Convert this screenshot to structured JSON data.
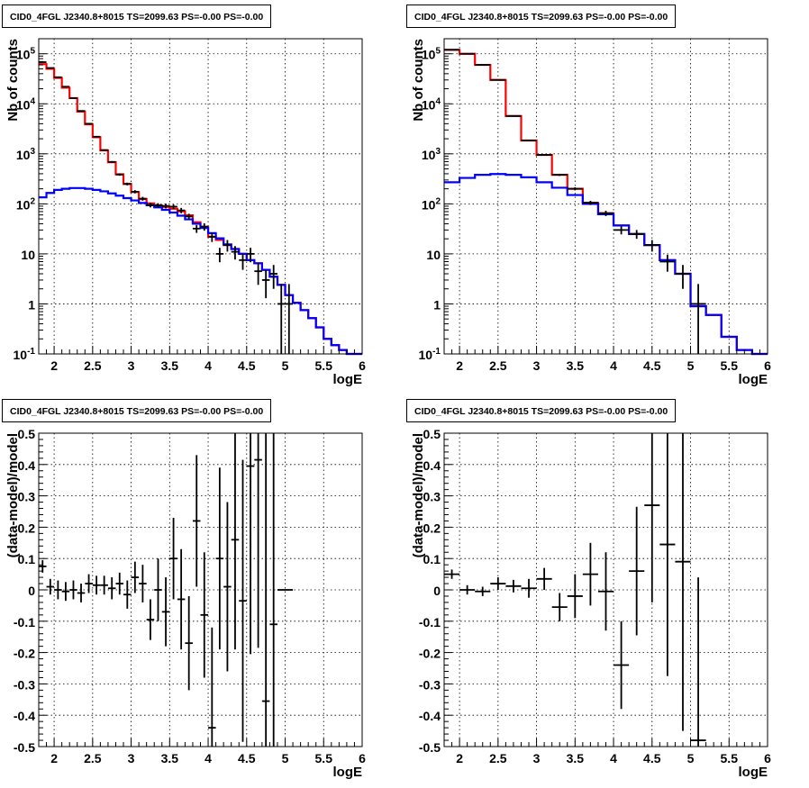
{
  "panels_title": "CID0_4FGL J2340.8+8015 TS=2099.63 PS=-0.00 PS=-0.00",
  "colors": {
    "data": "#000000",
    "total_model": "#ff0000",
    "background_model": "#0000ff",
    "grid": "#000000"
  },
  "chart_data": [
    {
      "type": "line",
      "title": "CID0_4FGL J2340.8+8015 TS=2099.63 PS=-0.00 PS=-0.00",
      "xlabel": "logE",
      "ylabel": "Nb of counts",
      "log_y": true,
      "xlim": [
        1.8,
        6.0
      ],
      "ylim": [
        0.1,
        200000
      ],
      "x_ticks": [
        2,
        2.5,
        3,
        3.5,
        4,
        4.5,
        5,
        5.5,
        6
      ],
      "x_tick_labels": [
        "2",
        "2.5",
        "3",
        "3.5",
        "4",
        "4.5",
        "5",
        "5.5",
        "6"
      ],
      "y_ticks": [
        0.1,
        1,
        10,
        100,
        1000,
        10000,
        100000
      ],
      "y_tick_labels": [
        "10^-1",
        "1",
        "10",
        "10^2",
        "10^3",
        "10^4",
        "10^5"
      ],
      "grid": true,
      "series": [
        {
          "kind": "step",
          "color": "#ff0000",
          "edges": [
            1.8,
            1.9,
            2.0,
            2.1,
            2.2,
            2.3,
            2.4,
            2.5,
            2.6,
            2.7,
            2.8,
            2.9,
            3.0,
            3.1,
            3.2,
            3.3,
            3.4,
            3.5,
            3.6,
            3.7,
            3.8,
            3.9,
            4.0,
            4.1,
            4.2,
            4.3,
            4.4,
            4.5,
            4.6,
            4.7,
            4.8,
            4.9,
            5.0,
            5.1,
            5.2,
            5.3,
            5.4,
            5.5,
            5.6,
            5.7,
            5.8,
            5.9,
            6.0
          ],
          "values": [
            62000,
            50000,
            33000,
            21000,
            13000,
            7000,
            3900,
            2150,
            1170,
            680,
            390,
            250,
            172,
            125,
            102,
            93,
            87,
            80,
            71,
            59,
            43,
            35,
            22,
            19,
            15,
            12.5,
            10,
            7.5,
            6.5,
            4.8,
            3.5,
            2.4,
            1.5,
            1.05,
            0.75,
            0.52,
            0.34,
            0.2,
            0.15,
            0.12,
            0.1,
            0.1
          ]
        },
        {
          "kind": "step",
          "color": "#0000ff",
          "edges": [
            1.8,
            1.9,
            2.0,
            2.1,
            2.2,
            2.3,
            2.4,
            2.5,
            2.6,
            2.7,
            2.8,
            2.9,
            3.0,
            3.1,
            3.2,
            3.3,
            3.4,
            3.5,
            3.6,
            3.7,
            3.8,
            3.9,
            4.0,
            4.1,
            4.2,
            4.3,
            4.4,
            4.5,
            4.6,
            4.7,
            4.8,
            4.9,
            5.0,
            5.1,
            5.2,
            5.3,
            5.4,
            5.5,
            5.6,
            5.7,
            5.8,
            5.9,
            6.0
          ],
          "values": [
            135,
            165,
            190,
            200,
            207,
            207,
            200,
            190,
            178,
            162,
            146,
            130,
            117,
            104,
            94,
            85,
            76,
            67,
            58,
            49,
            40,
            33,
            26,
            20.5,
            15.5,
            12.5,
            10,
            7.5,
            6.5,
            4.8,
            3.5,
            2.4,
            1.5,
            1.05,
            0.75,
            0.52,
            0.34,
            0.2,
            0.15,
            0.12,
            0.1,
            0.1
          ]
        },
        {
          "kind": "errorbars",
          "color": "#000000",
          "x": [
            1.85,
            1.95,
            2.05,
            2.15,
            2.25,
            2.35,
            2.45,
            2.55,
            2.65,
            2.75,
            2.85,
            2.95,
            3.05,
            3.15,
            3.25,
            3.35,
            3.45,
            3.55,
            3.65,
            3.75,
            3.85,
            3.95,
            4.05,
            4.15,
            4.25,
            4.35,
            4.45,
            4.55,
            4.65,
            4.75,
            4.85,
            4.95,
            5.05
          ],
          "y": [
            68000,
            52000,
            34000,
            22000,
            13000,
            7200,
            4000,
            2200,
            1190,
            690,
            385,
            250,
            175,
            127,
            95,
            93,
            91,
            88,
            74,
            56,
            32,
            35,
            22,
            10,
            15,
            11,
            7.5,
            10,
            4.5,
            3,
            4,
            1,
            1
          ],
          "yerr_low": [
            260,
            230,
            185,
            150,
            115,
            85,
            63,
            47,
            34,
            26,
            20,
            16,
            13,
            11,
            10,
            10,
            10,
            9,
            9,
            7.5,
            5.7,
            5.9,
            4.7,
            3.2,
            3.9,
            3.3,
            2.7,
            3.2,
            2.1,
            1.7,
            2,
            0.99,
            0.99
          ],
          "yerr_high": [
            260,
            230,
            185,
            150,
            115,
            85,
            63,
            47,
            34,
            26,
            20,
            16,
            13,
            11,
            10,
            10,
            10,
            9,
            9,
            7.5,
            5.7,
            5.9,
            4.7,
            3.2,
            3.9,
            3.3,
            2.7,
            3.2,
            2.1,
            1.7,
            2,
            1.5,
            1.5
          ],
          "xerr": 0.05
        }
      ]
    },
    {
      "type": "line",
      "title": "CID0_4FGL J2340.8+8015 TS=2099.63 PS=-0.00 PS=-0.00",
      "xlabel": "logE",
      "ylabel": "Nb of counts",
      "log_y": true,
      "xlim": [
        1.8,
        6.0
      ],
      "ylim": [
        0.1,
        200000
      ],
      "x_ticks": [
        2,
        2.5,
        3,
        3.5,
        4,
        4.5,
        5,
        5.5,
        6
      ],
      "x_tick_labels": [
        "2",
        "2.5",
        "3",
        "3.5",
        "4",
        "4.5",
        "5",
        "5.5",
        "6"
      ],
      "y_ticks": [
        0.1,
        1,
        10,
        100,
        1000,
        10000,
        100000
      ],
      "y_tick_labels": [
        "10^-1",
        "1",
        "10",
        "10^2",
        "10^3",
        "10^4",
        "10^5"
      ],
      "grid": true,
      "series": [
        {
          "kind": "step",
          "color": "#ff0000",
          "edges": [
            1.8,
            2.0,
            2.2,
            2.4,
            2.6,
            2.8,
            3.0,
            3.2,
            3.4,
            3.6,
            3.8,
            4.0,
            4.2,
            4.4,
            4.6,
            4.8,
            5.0,
            5.2,
            5.4,
            5.6,
            5.8,
            6.0
          ],
          "values": [
            120000,
            100000,
            60000,
            30000,
            5700,
            1850,
            950,
            380,
            200,
            105,
            65,
            37,
            25,
            15,
            7.5,
            4,
            0.9,
            0.6,
            0.22,
            0.12,
            0.1
          ]
        },
        {
          "kind": "step",
          "color": "#0000ff",
          "edges": [
            1.8,
            2.0,
            2.2,
            2.4,
            2.6,
            2.8,
            3.0,
            3.2,
            3.4,
            3.6,
            3.8,
            4.0,
            4.2,
            4.4,
            4.6,
            4.8,
            5.0,
            5.2,
            5.4,
            5.6,
            5.8,
            6.0
          ],
          "values": [
            270,
            330,
            380,
            395,
            380,
            340,
            270,
            210,
            150,
            100,
            62,
            37,
            25,
            15,
            7.5,
            4,
            0.9,
            0.6,
            0.22,
            0.12,
            0.1
          ]
        },
        {
          "kind": "errorbars",
          "color": "#000000",
          "x": [
            1.9,
            2.1,
            2.3,
            2.5,
            2.7,
            2.9,
            3.1,
            3.3,
            3.5,
            3.7,
            3.9,
            4.1,
            4.3,
            4.5,
            4.7,
            4.9,
            5.1
          ],
          "y": [
            120000,
            100000,
            60000,
            30000,
            5700,
            1850,
            950,
            380,
            200,
            105,
            65,
            30,
            25,
            15,
            7,
            4,
            1
          ],
          "yerr_low": [
            350,
            320,
            245,
            175,
            75,
            43,
            31,
            19,
            14,
            10,
            8,
            5.5,
            5,
            3.9,
            2.6,
            2,
            0.99
          ],
          "yerr_high": [
            350,
            320,
            245,
            175,
            75,
            43,
            31,
            19,
            14,
            10,
            8,
            5.5,
            5,
            3.9,
            2.6,
            2,
            1.5
          ],
          "xerr": 0.1
        }
      ]
    },
    {
      "type": "scatter",
      "title": "CID0_4FGL J2340.8+8015 TS=2099.63 PS=-0.00 PS=-0.00",
      "xlabel": "logE",
      "ylabel": "(data-model)/model",
      "xlim": [
        1.8,
        6.0
      ],
      "ylim": [
        -0.5,
        0.5
      ],
      "x_ticks": [
        2,
        2.5,
        3,
        3.5,
        4,
        4.5,
        5,
        5.5,
        6
      ],
      "x_tick_labels": [
        "2",
        "2.5",
        "3",
        "3.5",
        "4",
        "4.5",
        "5",
        "5.5",
        "6"
      ],
      "y_ticks": [
        -0.5,
        -0.4,
        -0.3,
        -0.2,
        -0.1,
        0,
        0.1,
        0.2,
        0.3,
        0.4,
        0.5
      ],
      "y_tick_labels": [
        "-0.5",
        "-0.4",
        "-0.3",
        "-0.2",
        "-0.1",
        "0",
        "0.1",
        "0.2",
        "0.3",
        "0.4",
        "0.5"
      ],
      "grid": true,
      "series": [
        {
          "kind": "errorbars",
          "color": "#000000",
          "x": [
            1.85,
            1.95,
            2.05,
            2.15,
            2.25,
            2.35,
            2.45,
            2.55,
            2.65,
            2.75,
            2.85,
            2.95,
            3.05,
            3.15,
            3.25,
            3.35,
            3.45,
            3.55,
            3.65,
            3.75,
            3.85,
            3.95,
            4.05,
            4.15,
            4.25,
            4.35,
            4.45,
            4.55,
            4.65,
            4.75,
            4.85,
            4.95,
            5.05
          ],
          "y": [
            0.075,
            0.01,
            0.0,
            -0.005,
            0.0,
            -0.01,
            0.02,
            0.015,
            0.015,
            0.005,
            0.02,
            -0.015,
            0.04,
            0.02,
            -0.095,
            0.0,
            -0.07,
            0.1,
            -0.03,
            -0.17,
            0.22,
            -0.08,
            -0.44,
            0.1,
            0.01,
            0.16,
            -0.035,
            0.395,
            0.415,
            -0.355,
            -0.11,
            0.0,
            0.0
          ],
          "yerr": [
            0.02,
            0.025,
            0.03,
            0.03,
            0.03,
            0.03,
            0.03,
            0.03,
            0.03,
            0.035,
            0.035,
            0.045,
            0.05,
            0.06,
            0.065,
            0.1,
            0.11,
            0.13,
            0.16,
            0.15,
            0.21,
            0.2,
            0.32,
            0.29,
            0.27,
            0.35,
            0.45,
            0.6,
            0.6,
            0.9,
            0.9,
            0.0,
            0.0
          ],
          "xerr": 0.05
        }
      ]
    },
    {
      "type": "scatter",
      "title": "CID0_4FGL J2340.8+8015 TS=2099.63 PS=-0.00 PS=-0.00",
      "xlabel": "logE",
      "ylabel": "(data-model)/model",
      "xlim": [
        1.8,
        6.0
      ],
      "ylim": [
        -0.5,
        0.5
      ],
      "x_ticks": [
        2,
        2.5,
        3,
        3.5,
        4,
        4.5,
        5,
        5.5,
        6
      ],
      "x_tick_labels": [
        "2",
        "2.5",
        "3",
        "3.5",
        "4",
        "4.5",
        "5",
        "5.5",
        "6"
      ],
      "y_ticks": [
        -0.5,
        -0.4,
        -0.3,
        -0.2,
        -0.1,
        0,
        0.1,
        0.2,
        0.3,
        0.4,
        0.5
      ],
      "y_tick_labels": [
        "-0.5",
        "-0.4",
        "-0.3",
        "-0.2",
        "-0.1",
        "0",
        "0.1",
        "0.2",
        "0.3",
        "0.4",
        "0.5"
      ],
      "grid": true,
      "series": [
        {
          "kind": "errorbars",
          "color": "#000000",
          "x": [
            1.9,
            2.1,
            2.3,
            2.5,
            2.7,
            2.9,
            3.1,
            3.3,
            3.5,
            3.7,
            3.9,
            4.1,
            4.3,
            4.5,
            4.7,
            4.9,
            5.1
          ],
          "y": [
            0.05,
            0.0,
            -0.005,
            0.02,
            0.012,
            0.005,
            0.035,
            -0.055,
            -0.02,
            0.05,
            -0.005,
            -0.24,
            0.06,
            0.27,
            0.145,
            0.09,
            -0.48
          ],
          "yerr": [
            0.015,
            0.015,
            0.015,
            0.02,
            0.02,
            0.03,
            0.035,
            0.045,
            0.07,
            0.1,
            0.125,
            0.14,
            0.205,
            0.31,
            0.42,
            0.54,
            0.52
          ],
          "xerr": 0.1
        }
      ]
    }
  ]
}
